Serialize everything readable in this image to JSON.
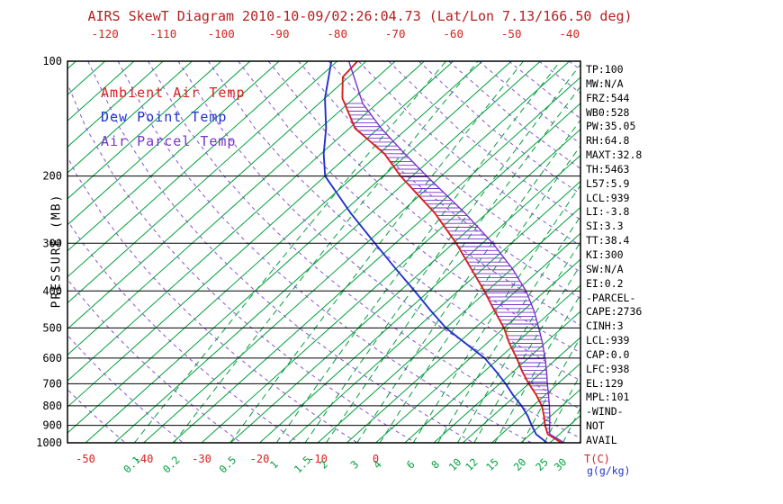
{
  "title": "AIRS SkewT Diagram 2010-10-09/02:26:04.73 (Lat/Lon 7.13/166.50 deg)",
  "y_axis_label": "PRESSURE (MB)",
  "axis_units": {
    "temp": "T(C)",
    "mixing_ratio": "g(g/kg)"
  },
  "legend": [
    {
      "label": "Ambient Air Temp",
      "color": "#d82020"
    },
    {
      "label": "Dew Point Temp",
      "color": "#2233cc"
    },
    {
      "label": "Air Parcel Temp",
      "color": "#7733cc"
    }
  ],
  "stats": [
    "TP:100",
    "MW:N/A",
    "FRZ:544",
    "WB0:528",
    "PW:35.05",
    "RH:64.8",
    "MAXT:32.8",
    "TH:5463",
    "L57:5.9",
    "LCL:939",
    "LI:-3.8",
    "SI:3.3",
    "TT:38.4",
    "KI:300",
    "SW:N/A",
    "EI:0.2",
    "-PARCEL-",
    "CAPE:2736",
    "CINH:3",
    "LCL:939",
    "CAP:0.0",
    "LFC:938",
    "EL:129",
    "MPL:101",
    "-WIND-",
    "NOT",
    "AVAIL"
  ],
  "colors": {
    "red": "#d82020",
    "blue": "#2233cc",
    "parcel": "#7733cc",
    "grid_green": "#00a03c",
    "grid_violet": "#7a3fd1",
    "black": "#000000",
    "mr_unit_label": "#2233cc",
    "title_red": "#b32020"
  },
  "chart_data": {
    "type": "line",
    "variant": "skewt-log-p",
    "title": "AIRS SkewT Diagram 2010-10-09/02:26:04.73 (Lat/Lon 7.13/166.50 deg)",
    "ylabel": "PRESSURE (MB)",
    "ylim_mb": [
      100,
      1000
    ],
    "pressure_ticks": [
      100,
      200,
      300,
      400,
      500,
      600,
      700,
      800,
      900,
      1000
    ],
    "top_temp_ticks_c": [
      -120,
      -110,
      -100,
      -90,
      -80,
      -70,
      -60,
      -50,
      -40
    ],
    "bottom_temp_ticks_c": [
      -50,
      -40,
      -30,
      -20,
      -10,
      0
    ],
    "mixing_ratio_lines_gkg": [
      0.1,
      0.2,
      0.5,
      1,
      1.5,
      2,
      3,
      4,
      6,
      8,
      10,
      12,
      15,
      20,
      25,
      30
    ],
    "isotherms_c": {
      "min": -140,
      "max": 40,
      "step": 5
    },
    "dry_adiabats_k": {
      "min": 220,
      "max": 460,
      "step": 10
    },
    "cape_hatch": {
      "top_mb": 129,
      "bottom_mb": 939
    },
    "series": [
      {
        "name": "Ambient Air Temp",
        "color": "#d82020",
        "points_p_t": [
          [
            1000,
            32
          ],
          [
            950,
            28
          ],
          [
            900,
            25.8
          ],
          [
            850,
            23.8
          ],
          [
            800,
            21.5
          ],
          [
            750,
            18.5
          ],
          [
            700,
            15
          ],
          [
            650,
            11.5
          ],
          [
            600,
            8
          ],
          [
            550,
            4
          ],
          [
            500,
            0
          ],
          [
            450,
            -5
          ],
          [
            400,
            -10.5
          ],
          [
            350,
            -17
          ],
          [
            300,
            -24.5
          ],
          [
            250,
            -34
          ],
          [
            200,
            -47
          ],
          [
            175,
            -54
          ],
          [
            150,
            -64
          ],
          [
            125,
            -72
          ],
          [
            110,
            -76
          ],
          [
            100,
            -76.5
          ]
        ]
      },
      {
        "name": "Dew Point Temp",
        "color": "#2233cc",
        "points_p_t": [
          [
            1000,
            29.5
          ],
          [
            950,
            26
          ],
          [
            900,
            23.5
          ],
          [
            850,
            21
          ],
          [
            800,
            18
          ],
          [
            750,
            14.5
          ],
          [
            700,
            11
          ],
          [
            650,
            7
          ],
          [
            600,
            2.5
          ],
          [
            550,
            -3.5
          ],
          [
            500,
            -10
          ],
          [
            450,
            -16
          ],
          [
            400,
            -22.5
          ],
          [
            350,
            -30
          ],
          [
            300,
            -38.5
          ],
          [
            250,
            -48.5
          ],
          [
            200,
            -60
          ],
          [
            175,
            -64.5
          ],
          [
            150,
            -69
          ],
          [
            125,
            -75
          ],
          [
            100,
            -81
          ]
        ]
      },
      {
        "name": "Air Parcel Temp",
        "color": "#7733cc",
        "points_p_t": [
          [
            1000,
            32.5
          ],
          [
            950,
            28.4
          ],
          [
            939,
            27.9
          ],
          [
            900,
            26.6
          ],
          [
            850,
            24.8
          ],
          [
            800,
            22.8
          ],
          [
            750,
            20.6
          ],
          [
            700,
            18.2
          ],
          [
            650,
            15.7
          ],
          [
            600,
            12.9
          ],
          [
            550,
            9.7
          ],
          [
            500,
            6
          ],
          [
            450,
            1.8
          ],
          [
            400,
            -3.3
          ],
          [
            350,
            -9.9
          ],
          [
            300,
            -18.2
          ],
          [
            250,
            -28.8
          ],
          [
            200,
            -42.5
          ],
          [
            175,
            -50.5
          ],
          [
            150,
            -59.5
          ],
          [
            129,
            -67.5
          ],
          [
            100,
            -78
          ]
        ]
      }
    ]
  }
}
